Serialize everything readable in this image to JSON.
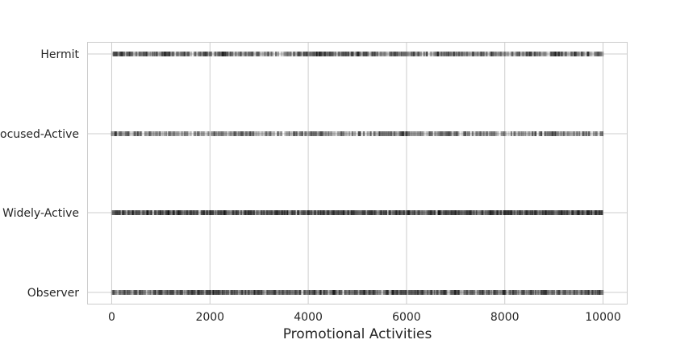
{
  "chart_data": {
    "type": "scatter",
    "title": "",
    "xlabel": "Promotional Activities",
    "ylabel": "",
    "xlim": [
      -500,
      10500
    ],
    "x_ticks": [
      0,
      2000,
      4000,
      6000,
      8000,
      10000
    ],
    "x_tick_labels": [
      "0",
      "2000",
      "4000",
      "6000",
      "8000",
      "10000"
    ],
    "categories": [
      "Hermit",
      "Focused-Active",
      "Widely-Active",
      "Observer"
    ],
    "grid": true,
    "marker_alpha": 0.15,
    "colors": {
      "marker": "#000000",
      "grid": "#cccccc",
      "frame": "#cccccc",
      "background": "#ffffff"
    },
    "series": [
      {
        "category": "Hermit",
        "x_range": [
          0,
          10000
        ],
        "density": [
          8,
          6,
          7,
          5,
          9,
          6,
          4,
          7,
          6,
          8,
          5,
          6,
          4,
          3,
          5,
          7,
          9,
          8,
          6,
          7,
          8,
          6,
          5,
          7,
          6,
          4,
          6,
          7,
          6,
          5,
          6,
          5,
          4,
          6,
          7,
          5,
          8,
          6,
          6,
          5
        ]
      },
      {
        "category": "Focused-Active",
        "x_range": [
          0,
          10000
        ],
        "density": [
          6,
          5,
          4,
          5,
          4,
          4,
          3,
          4,
          5,
          4,
          6,
          5,
          4,
          3,
          4,
          5,
          6,
          5,
          4,
          3,
          4,
          5,
          6,
          7,
          5,
          4,
          5,
          6,
          5,
          4,
          5,
          4,
          3,
          4,
          5,
          6,
          5,
          4,
          5,
          4
        ]
      },
      {
        "category": "Widely-Active",
        "x_range": [
          0,
          10000
        ],
        "density": [
          9,
          8,
          9,
          8,
          9,
          10,
          9,
          8,
          9,
          9,
          8,
          9,
          8,
          10,
          9,
          8,
          9,
          9,
          10,
          9,
          8,
          9,
          8,
          9,
          9,
          8,
          9,
          10,
          9,
          8,
          9,
          9,
          10,
          9,
          9,
          10,
          9,
          9,
          10,
          10
        ]
      },
      {
        "category": "Observer",
        "x_range": [
          0,
          10000
        ],
        "density": [
          6,
          7,
          6,
          7,
          8,
          7,
          8,
          9,
          9,
          8,
          7,
          8,
          7,
          8,
          7,
          6,
          8,
          7,
          8,
          7,
          8,
          7,
          8,
          9,
          8,
          7,
          7,
          8,
          7,
          6,
          7,
          8,
          7,
          6,
          7,
          8,
          7,
          6,
          7,
          8
        ]
      }
    ]
  }
}
